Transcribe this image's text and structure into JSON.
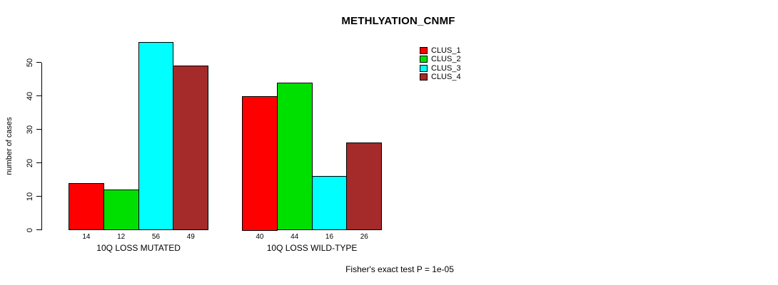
{
  "chart_data": {
    "type": "bar",
    "title": "METHLYATION_CNMF",
    "ylabel": "number of cases",
    "xlabel": "",
    "ylim": [
      0,
      56
    ],
    "yticks": [
      "0",
      "10",
      "20",
      "30",
      "40",
      "50"
    ],
    "grid": false,
    "legend_position": "top-right",
    "categories": [
      "10Q LOSS MUTATED",
      "10Q LOSS WILD-TYPE"
    ],
    "series": [
      {
        "name": "CLUS_1",
        "color": "#FF0000",
        "values": [
          14,
          40
        ]
      },
      {
        "name": "CLUS_2",
        "color": "#00E000",
        "values": [
          12,
          44
        ]
      },
      {
        "name": "CLUS_3",
        "color": "#00FFFF",
        "values": [
          56,
          16
        ]
      },
      {
        "name": "CLUS_4",
        "color": "#A52A2A",
        "values": [
          49,
          26
        ]
      }
    ],
    "bar_value_labels": [
      [
        "14",
        "12",
        "56",
        "49"
      ],
      [
        "40",
        "44",
        "16",
        "26"
      ]
    ],
    "annotation": "Fisher's exact test P = 1e-05"
  }
}
